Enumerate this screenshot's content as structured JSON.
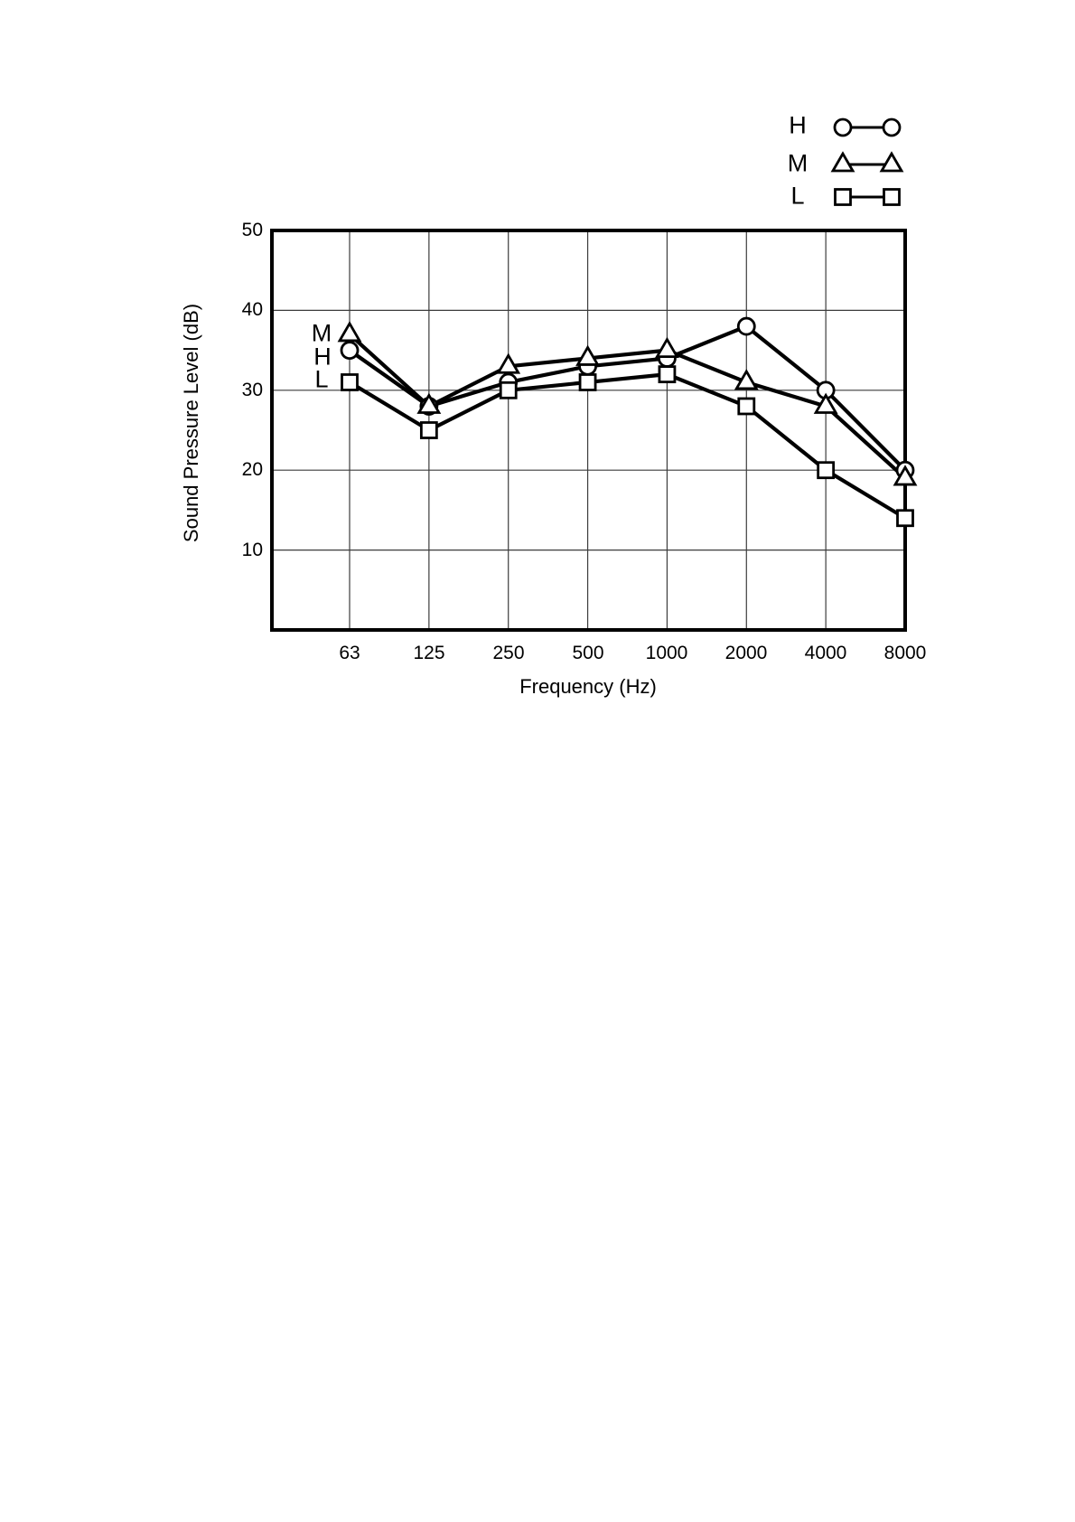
{
  "page": {
    "background": "#ffffff"
  },
  "legend": {
    "position": "top-right",
    "items": [
      {
        "label": "H",
        "marker": "circle"
      },
      {
        "label": "M",
        "marker": "triangle"
      },
      {
        "label": "L",
        "marker": "square"
      }
    ]
  },
  "annotations": [
    {
      "label": "M",
      "series": "M",
      "at_frequency": "63",
      "value": 37
    },
    {
      "label": "H",
      "series": "H",
      "at_frequency": "63",
      "value": 35
    },
    {
      "label": "L",
      "series": "L",
      "at_frequency": "63",
      "value": 31
    }
  ],
  "chart_data": {
    "type": "line",
    "x_categories": [
      "63",
      "125",
      "250",
      "500",
      "1000",
      "2000",
      "4000",
      "8000"
    ],
    "series": [
      {
        "name": "H",
        "marker": "circle",
        "color": "#000000",
        "values": [
          35,
          28,
          31,
          33,
          34,
          38,
          30,
          20
        ]
      },
      {
        "name": "M",
        "marker": "triangle",
        "color": "#000000",
        "values": [
          37,
          28,
          33,
          34,
          35,
          31,
          28,
          19
        ]
      },
      {
        "name": "L",
        "marker": "square",
        "color": "#000000",
        "values": [
          31,
          25,
          30,
          31,
          32,
          28,
          20,
          14
        ]
      }
    ],
    "xlabel": "Frequency (Hz)",
    "ylabel": "Sound Pressure Level (dB)",
    "ylim": [
      0,
      50
    ],
    "y_ticks": [
      50,
      40,
      30,
      20,
      10
    ],
    "x_axis_scale": "log-octave",
    "grid": true,
    "legend_position": "top-right",
    "line_color": "#000000",
    "marker_fill": "#ffffff",
    "grid_color": "#3c3c3c"
  }
}
